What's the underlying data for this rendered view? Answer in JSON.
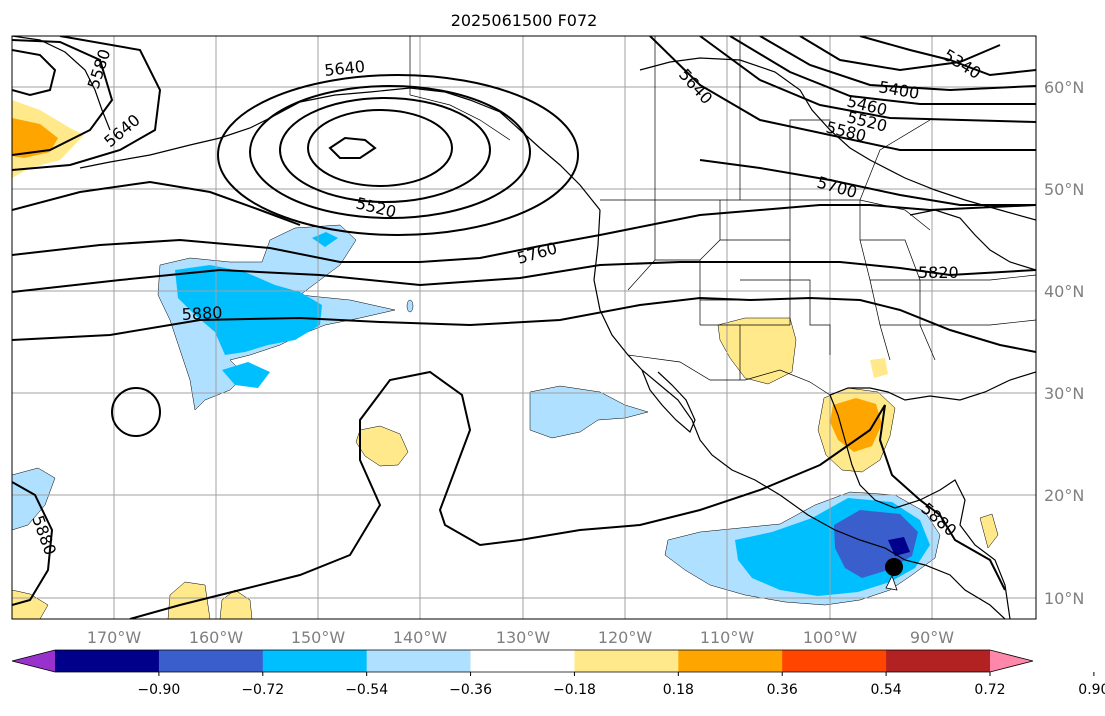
{
  "title": "2025061500 F072",
  "longitude_labels": [
    "170°W",
    "160°W",
    "150°W",
    "140°W",
    "130°W",
    "120°W",
    "110°W",
    "100°W",
    "90°W"
  ],
  "latitude_labels": [
    "60°N",
    "50°N",
    "40°N",
    "30°N",
    "20°N",
    "10°N"
  ],
  "contour_labels": [
    "5580",
    "5640",
    "5640",
    "5520",
    "5760",
    "5880",
    "5640",
    "5400",
    "5340",
    "5460",
    "5520",
    "5580",
    "5700",
    "5820",
    "5880",
    "5880"
  ],
  "colorbar": {
    "tick_labels": [
      "−0.90",
      "−0.72",
      "−0.54",
      "−0.36",
      "−0.18",
      "0.18",
      "0.36",
      "0.54",
      "0.72",
      "0.90"
    ],
    "colors": [
      "#9932cc",
      "#00008b",
      "#3a5fcd",
      "#00bfff",
      "#b0e0ff",
      "#ffffff",
      "#ffe98a",
      "#ffa500",
      "#ff4500",
      "#b22222",
      "#ff88aa"
    ]
  },
  "colors": {
    "grid": "#a0a0a0",
    "tick_label": "#808080",
    "contour": "#000000"
  },
  "marker": {
    "type": "filled-circle",
    "color": "#000000"
  }
}
